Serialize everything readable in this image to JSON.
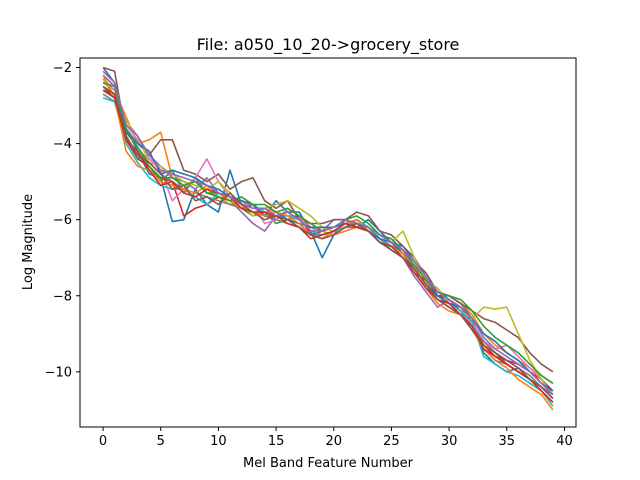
{
  "chart_data": {
    "type": "line",
    "title": "File: a050_10_20->grocery_store",
    "xlabel": "Mel Band Feature Number",
    "ylabel": "Log Magnitude",
    "xlim": [
      -2,
      41
    ],
    "ylim": [
      -11.45,
      -1.75
    ],
    "xticks": [
      0,
      5,
      10,
      15,
      20,
      25,
      30,
      35,
      40
    ],
    "yticks": [
      -10,
      -8,
      -6,
      -4,
      -2
    ],
    "ytick_labels": [
      "−10",
      "−8",
      "−6",
      "−4",
      "−2"
    ],
    "grid": false,
    "legend": "none",
    "x": [
      0,
      1,
      2,
      3,
      4,
      5,
      6,
      7,
      8,
      9,
      10,
      11,
      12,
      13,
      14,
      15,
      16,
      17,
      18,
      19,
      20,
      21,
      22,
      23,
      24,
      25,
      26,
      27,
      28,
      29,
      30,
      31,
      32,
      33,
      34,
      35,
      36,
      37,
      38,
      39
    ],
    "colors": [
      "#1f77b4",
      "#ff7f0e",
      "#2ca02c",
      "#d62728",
      "#9467bd",
      "#8c564b",
      "#e377c2",
      "#7f7f7f",
      "#bcbd22",
      "#17becf"
    ],
    "series": [
      {
        "values": [
          -2.0,
          -2.4,
          -3.6,
          -4.2,
          -4.8,
          -4.9,
          -6.05,
          -6.0,
          -5.2,
          -5.6,
          -5.8,
          -4.7,
          -5.6,
          -5.6,
          -5.9,
          -5.5,
          -5.8,
          -5.8,
          -6.3,
          -7.0,
          -6.4,
          -6.0,
          -6.2,
          -6.0,
          -6.3,
          -6.6,
          -6.7,
          -7.0,
          -7.5,
          -8.0,
          -8.0,
          -8.2,
          -8.6,
          -9.5,
          -9.8,
          -10.0,
          -9.9,
          -10.2,
          -10.4,
          -10.7
        ]
      },
      {
        "values": [
          -2.3,
          -2.6,
          -3.3,
          -4.0,
          -3.9,
          -3.7,
          -4.9,
          -5.0,
          -5.1,
          -5.2,
          -5.4,
          -5.6,
          -5.5,
          -5.7,
          -5.7,
          -5.8,
          -5.9,
          -5.9,
          -6.2,
          -6.3,
          -6.4,
          -6.3,
          -6.2,
          -6.2,
          -6.5,
          -6.6,
          -6.9,
          -7.2,
          -7.5,
          -7.9,
          -8.0,
          -8.2,
          -8.5,
          -9.0,
          -9.3,
          -9.5,
          -9.7,
          -9.9,
          -10.1,
          -10.3
        ]
      },
      {
        "values": [
          -2.5,
          -2.8,
          -3.8,
          -4.3,
          -4.6,
          -5.0,
          -4.7,
          -5.3,
          -4.9,
          -5.3,
          -5.3,
          -5.4,
          -5.7,
          -5.9,
          -5.8,
          -6.1,
          -6.0,
          -6.1,
          -6.4,
          -6.5,
          -6.3,
          -6.2,
          -6.1,
          -6.3,
          -6.6,
          -6.7,
          -6.8,
          -7.3,
          -7.7,
          -8.1,
          -8.2,
          -8.4,
          -8.9,
          -9.2,
          -9.5,
          -9.8,
          -10.0,
          -10.2,
          -10.5,
          -10.8
        ]
      },
      {
        "values": [
          -2.6,
          -2.7,
          -3.9,
          -4.4,
          -4.6,
          -4.9,
          -5.0,
          -5.9,
          -5.7,
          -5.6,
          -5.4,
          -5.5,
          -5.7,
          -5.6,
          -5.9,
          -5.9,
          -6.0,
          -5.9,
          -6.4,
          -6.3,
          -6.2,
          -6.1,
          -6.0,
          -6.2,
          -6.5,
          -6.8,
          -7.0,
          -7.4,
          -7.6,
          -8.0,
          -8.1,
          -8.3,
          -8.7,
          -9.3,
          -9.6,
          -9.7,
          -9.8,
          -10.0,
          -10.2,
          -10.5
        ]
      },
      {
        "values": [
          -2.2,
          -2.5,
          -3.6,
          -4.0,
          -4.3,
          -4.6,
          -4.9,
          -5.0,
          -5.2,
          -4.9,
          -5.3,
          -5.5,
          -5.8,
          -6.1,
          -6.3,
          -5.9,
          -5.8,
          -6.0,
          -6.2,
          -6.3,
          -6.0,
          -6.0,
          -6.1,
          -6.3,
          -6.5,
          -6.7,
          -7.0,
          -7.5,
          -7.9,
          -8.3,
          -8.1,
          -8.4,
          -8.8,
          -9.4,
          -9.7,
          -9.8,
          -10.0,
          -10.2,
          -10.4,
          -10.6
        ]
      },
      {
        "values": [
          -2.0,
          -2.1,
          -3.8,
          -4.4,
          -4.3,
          -3.9,
          -3.9,
          -4.7,
          -4.8,
          -5.0,
          -4.8,
          -5.2,
          -5.0,
          -4.9,
          -5.5,
          -5.7,
          -5.5,
          -6.0,
          -6.1,
          -6.1,
          -6.0,
          -6.0,
          -5.8,
          -5.9,
          -6.3,
          -6.4,
          -6.7,
          -7.1,
          -7.4,
          -7.9,
          -8.0,
          -8.2,
          -8.4,
          -8.6,
          -8.7,
          -8.9,
          -9.1,
          -9.5,
          -9.8,
          -10.0
        ]
      },
      {
        "values": [
          -2.4,
          -2.6,
          -3.5,
          -3.9,
          -4.4,
          -4.7,
          -5.5,
          -5.2,
          -4.9,
          -4.4,
          -5.0,
          -5.4,
          -5.6,
          -5.6,
          -6.1,
          -6.0,
          -5.7,
          -5.9,
          -6.3,
          -6.2,
          -6.2,
          -6.1,
          -6.0,
          -6.3,
          -6.4,
          -6.6,
          -6.8,
          -7.1,
          -7.6,
          -8.1,
          -8.3,
          -8.5,
          -8.7,
          -9.2,
          -9.4,
          -9.3,
          -9.6,
          -9.9,
          -10.2,
          -10.6
        ]
      },
      {
        "values": [
          -2.7,
          -2.9,
          -3.7,
          -4.1,
          -4.5,
          -4.8,
          -5.0,
          -5.2,
          -5.3,
          -5.4,
          -5.5,
          -5.6,
          -5.7,
          -5.8,
          -5.9,
          -6.0,
          -6.1,
          -6.2,
          -6.4,
          -6.4,
          -6.3,
          -6.2,
          -6.2,
          -6.3,
          -6.5,
          -6.7,
          -6.9,
          -7.3,
          -7.7,
          -8.1,
          -8.3,
          -8.5,
          -8.8,
          -9.2,
          -9.5,
          -9.7,
          -9.9,
          -10.1,
          -10.4,
          -10.7
        ]
      },
      {
        "values": [
          -2.3,
          -2.8,
          -3.4,
          -3.8,
          -4.5,
          -4.6,
          -4.8,
          -5.0,
          -5.1,
          -5.2,
          -5.0,
          -5.3,
          -5.6,
          -5.9,
          -5.7,
          -5.6,
          -5.5,
          -5.7,
          -5.9,
          -6.2,
          -6.3,
          -6.2,
          -6.1,
          -6.3,
          -6.4,
          -6.6,
          -6.3,
          -7.0,
          -7.6,
          -7.8,
          -8.2,
          -8.4,
          -8.6,
          -8.3,
          -8.35,
          -8.3,
          -9.0,
          -9.7,
          -10.2,
          -10.6
        ]
      },
      {
        "values": [
          -2.8,
          -2.9,
          -4.0,
          -4.5,
          -4.9,
          -5.1,
          -5.2,
          -5.2,
          -5.4,
          -5.6,
          -5.3,
          -5.4,
          -5.5,
          -5.6,
          -5.8,
          -5.9,
          -5.9,
          -6.0,
          -6.3,
          -6.4,
          -6.3,
          -6.2,
          -6.0,
          -6.2,
          -6.5,
          -6.8,
          -7.0,
          -7.4,
          -7.8,
          -8.0,
          -8.2,
          -8.4,
          -8.7,
          -9.6,
          -9.8,
          -10.0,
          -10.1,
          -10.3,
          -10.5,
          -10.9
        ]
      },
      {
        "values": [
          -2.5,
          -2.7,
          -3.7,
          -4.0,
          -4.2,
          -4.8,
          -4.7,
          -4.8,
          -4.9,
          -5.1,
          -5.2,
          -5.4,
          -5.5,
          -5.6,
          -5.9,
          -5.8,
          -6.0,
          -6.1,
          -6.2,
          -6.2,
          -6.2,
          -6.1,
          -6.2,
          -6.3,
          -6.5,
          -6.6,
          -6.9,
          -7.3,
          -7.7,
          -8.0,
          -8.2,
          -8.3,
          -8.6,
          -9.0,
          -9.2,
          -9.5,
          -9.7,
          -10.0,
          -10.3,
          -10.5
        ]
      },
      {
        "values": [
          -2.2,
          -2.8,
          -4.2,
          -4.6,
          -4.7,
          -5.0,
          -5.1,
          -5.2,
          -5.3,
          -5.1,
          -5.3,
          -5.5,
          -5.7,
          -5.8,
          -5.9,
          -5.8,
          -5.9,
          -6.1,
          -6.4,
          -6.5,
          -6.3,
          -6.1,
          -6.0,
          -6.3,
          -6.6,
          -6.7,
          -6.9,
          -7.2,
          -7.8,
          -8.2,
          -8.4,
          -8.5,
          -8.9,
          -9.4,
          -9.7,
          -9.9,
          -10.2,
          -10.4,
          -10.6,
          -11.0
        ]
      },
      {
        "values": [
          -2.4,
          -2.5,
          -3.6,
          -4.1,
          -4.6,
          -4.9,
          -4.9,
          -5.1,
          -5.0,
          -5.3,
          -5.4,
          -5.5,
          -5.4,
          -5.6,
          -5.6,
          -5.8,
          -5.7,
          -5.9,
          -6.1,
          -6.3,
          -6.2,
          -6.0,
          -5.9,
          -6.1,
          -6.4,
          -6.5,
          -6.8,
          -7.2,
          -7.6,
          -7.9,
          -8.0,
          -8.1,
          -8.4,
          -8.8,
          -9.1,
          -9.3,
          -9.5,
          -9.8,
          -10.1,
          -10.3
        ]
      },
      {
        "values": [
          -2.6,
          -2.8,
          -3.9,
          -4.2,
          -4.7,
          -5.1,
          -5.0,
          -5.3,
          -5.4,
          -5.2,
          -5.3,
          -5.4,
          -5.7,
          -5.8,
          -5.8,
          -5.9,
          -6.1,
          -6.2,
          -6.5,
          -6.4,
          -6.3,
          -6.1,
          -6.2,
          -6.3,
          -6.6,
          -6.7,
          -7.0,
          -7.4,
          -7.8,
          -8.1,
          -8.2,
          -8.5,
          -8.8,
          -9.4,
          -9.6,
          -9.8,
          -10.0,
          -10.2,
          -10.5,
          -10.8
        ]
      },
      {
        "values": [
          -2.1,
          -2.4,
          -3.5,
          -3.8,
          -4.3,
          -4.7,
          -4.8,
          -4.9,
          -5.0,
          -5.1,
          -5.3,
          -5.4,
          -5.6,
          -5.7,
          -5.7,
          -5.9,
          -5.8,
          -6.0,
          -6.3,
          -6.3,
          -6.2,
          -6.0,
          -6.1,
          -6.2,
          -6.4,
          -6.6,
          -6.8,
          -7.1,
          -7.5,
          -7.9,
          -8.1,
          -8.3,
          -8.6,
          -9.1,
          -9.4,
          -9.6,
          -9.8,
          -10.0,
          -10.3,
          -10.6
        ]
      },
      {
        "values": [
          -2.5,
          -2.7,
          -3.8,
          -4.3,
          -4.5,
          -4.8,
          -5.2,
          -5.1,
          -5.5,
          -5.4,
          -5.6,
          -5.3,
          -5.6,
          -5.8,
          -6.0,
          -5.9,
          -6.0,
          -6.2,
          -6.4,
          -6.5,
          -6.4,
          -6.2,
          -6.1,
          -6.3,
          -6.6,
          -6.8,
          -7.0,
          -7.3,
          -7.7,
          -8.1,
          -8.3,
          -8.5,
          -8.9,
          -9.3,
          -9.5,
          -9.7,
          -9.9,
          -10.2,
          -10.4,
          -10.7
        ]
      }
    ]
  }
}
